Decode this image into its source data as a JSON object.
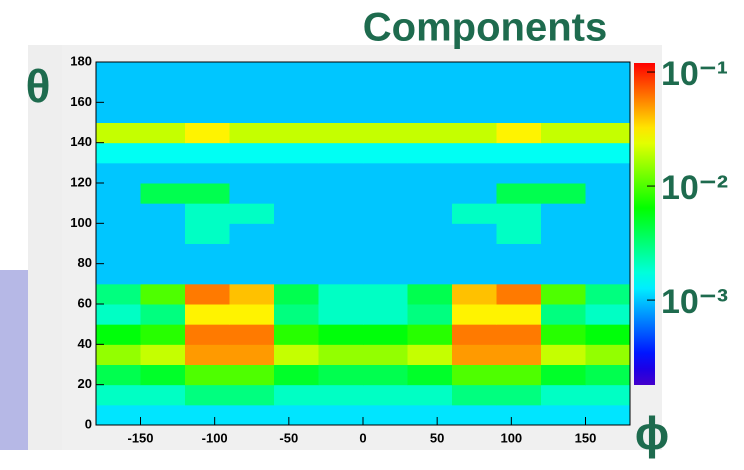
{
  "chart_data": {
    "type": "heatmap",
    "title": "Components",
    "xlabel": "ϕ",
    "ylabel": "θ",
    "x": [
      -165,
      -135,
      -105,
      -75,
      -45,
      -15,
      15,
      45,
      75,
      105,
      135,
      165
    ],
    "y": [
      5,
      15,
      25,
      35,
      45,
      55,
      65,
      75,
      85,
      95,
      105,
      115,
      125,
      135,
      145,
      155,
      165,
      175
    ],
    "values": [
      [
        0.0012,
        0.0012,
        0.0012,
        0.0012,
        0.0012,
        0.0012,
        0.0012,
        0.0012,
        0.0012,
        0.0012,
        0.0012,
        0.0012
      ],
      [
        0.002,
        0.002,
        0.003,
        0.003,
        0.002,
        0.002,
        0.002,
        0.002,
        0.003,
        0.003,
        0.002,
        0.002
      ],
      [
        0.004,
        0.005,
        0.01,
        0.01,
        0.005,
        0.004,
        0.004,
        0.005,
        0.01,
        0.01,
        0.005,
        0.004
      ],
      [
        0.015,
        0.02,
        0.05,
        0.05,
        0.02,
        0.015,
        0.015,
        0.02,
        0.05,
        0.05,
        0.02,
        0.015
      ],
      [
        0.006,
        0.008,
        0.06,
        0.06,
        0.008,
        0.006,
        0.006,
        0.008,
        0.06,
        0.06,
        0.008,
        0.006
      ],
      [
        0.002,
        0.003,
        0.03,
        0.03,
        0.003,
        0.002,
        0.002,
        0.003,
        0.03,
        0.03,
        0.003,
        0.002
      ],
      [
        0.003,
        0.01,
        0.06,
        0.04,
        0.004,
        0.002,
        0.002,
        0.004,
        0.04,
        0.06,
        0.01,
        0.003
      ],
      [
        0.001,
        0.001,
        0.001,
        0.001,
        0.001,
        0.001,
        0.001,
        0.001,
        0.001,
        0.001,
        0.001,
        0.001
      ],
      [
        0.001,
        0.001,
        0.001,
        0.001,
        0.001,
        0.001,
        0.001,
        0.001,
        0.001,
        0.001,
        0.001,
        0.001
      ],
      [
        0.001,
        0.001,
        0.002,
        0.001,
        0.001,
        0.001,
        0.001,
        0.001,
        0.001,
        0.002,
        0.001,
        0.001
      ],
      [
        0.001,
        0.001,
        0.002,
        0.002,
        0.001,
        0.001,
        0.001,
        0.001,
        0.002,
        0.002,
        0.001,
        0.001
      ],
      [
        0.001,
        0.004,
        0.004,
        0.001,
        0.001,
        0.001,
        0.001,
        0.001,
        0.001,
        0.004,
        0.004,
        0.001
      ],
      [
        0.001,
        0.001,
        0.001,
        0.001,
        0.001,
        0.001,
        0.001,
        0.001,
        0.001,
        0.001,
        0.001,
        0.001
      ],
      [
        0.0015,
        0.0015,
        0.0015,
        0.0015,
        0.0015,
        0.0015,
        0.0015,
        0.0015,
        0.0015,
        0.0015,
        0.0015,
        0.0015
      ],
      [
        0.02,
        0.02,
        0.03,
        0.02,
        0.02,
        0.02,
        0.02,
        0.02,
        0.02,
        0.03,
        0.02,
        0.02
      ],
      [
        0.001,
        0.001,
        0.001,
        0.001,
        0.001,
        0.001,
        0.001,
        0.001,
        0.001,
        0.001,
        0.001,
        0.001
      ],
      [
        0.001,
        0.001,
        0.001,
        0.001,
        0.001,
        0.001,
        0.001,
        0.001,
        0.001,
        0.001,
        0.001,
        0.001
      ],
      [
        0.001,
        0.001,
        0.001,
        0.001,
        0.001,
        0.001,
        0.001,
        0.001,
        0.001,
        0.001,
        0.001,
        0.001
      ]
    ],
    "xlim": [
      -180,
      180
    ],
    "xticks": [
      -150,
      -100,
      -50,
      0,
      50,
      100,
      150
    ],
    "ylim": [
      0,
      180
    ],
    "yticks": [
      0,
      20,
      40,
      60,
      80,
      100,
      120,
      140,
      160,
      180
    ],
    "zlim": [
      0.00018,
      0.12
    ],
    "zscale": "log",
    "zticks": [
      {
        "value": 0.1,
        "label": "10⁻¹"
      },
      {
        "value": 0.01,
        "label": "10⁻²"
      },
      {
        "value": 0.001,
        "label": "10⁻³"
      }
    ]
  }
}
